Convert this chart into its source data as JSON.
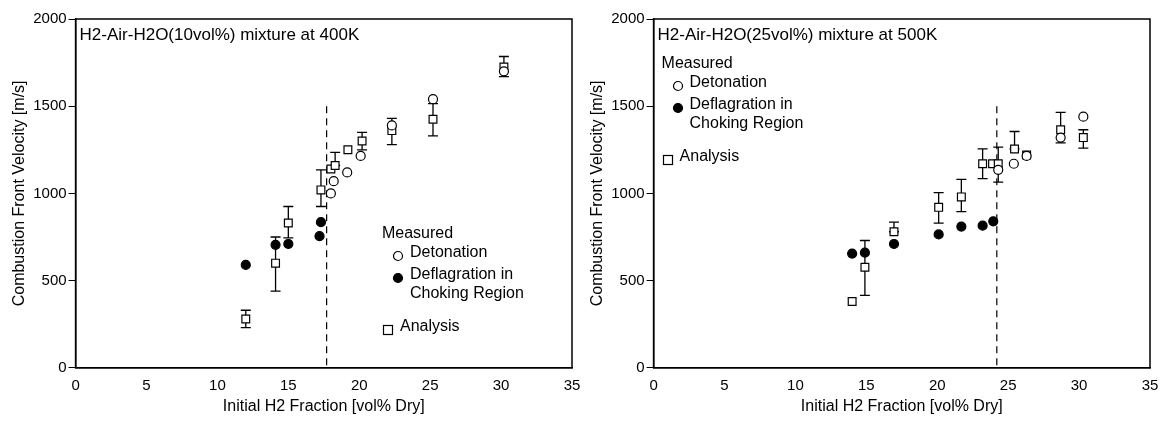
{
  "chart_data": [
    {
      "type": "scatter",
      "title": "H2-Air-H2O(10vol%) mixture at 400K",
      "xlabel": "Initial H2 Fraction [vol% Dry]",
      "ylabel": "Combustion Front Velocity [m/s]",
      "legend_title": "Measured",
      "legend": "bottom right",
      "xlim": [
        0,
        35
      ],
      "xticks": [
        0,
        5,
        10,
        15,
        20,
        25,
        30,
        35
      ],
      "ylim": [
        0,
        2000
      ],
      "yticks": [
        0,
        500,
        1000,
        1500,
        2000
      ],
      "ref_lines": [
        {
          "axis": "x",
          "value": 17.7,
          "line_style": "dashed"
        }
      ],
      "series": [
        {
          "name": "Detonation",
          "color": "#ffffff",
          "marker": "circle",
          "x": [
            18.0,
            18.2,
            19.15,
            20.1,
            22.3,
            25.2,
            30.2
          ],
          "values": [
            1000,
            1070,
            1120,
            1215,
            1390,
            1540,
            1700
          ]
        },
        {
          "name": "Deflagration in Choking Region",
          "color": "#000000",
          "marker": "circle",
          "x": [
            12.0,
            14.1,
            15.0,
            17.3,
            17.2
          ],
          "values": [
            590,
            705,
            710,
            835,
            755
          ]
        },
        {
          "name": "Analysis",
          "color": "#ffffff",
          "marker": "square",
          "x": [
            12.0,
            14.1,
            15.0,
            17.3,
            18.0,
            18.3,
            19.2,
            20.2,
            22.3,
            25.2,
            30.2
          ],
          "values": [
            280,
            600,
            830,
            1020,
            1140,
            1160,
            1250,
            1300,
            1360,
            1425,
            1725
          ],
          "errors": [
            50,
            [
              440,
              750
            ],
            [
              745,
              925
            ],
            [
              925,
              1135
            ],
            null,
            [
              1160,
              1235
            ],
            null,
            [
              1250,
              1350
            ],
            [
              1280,
              1430
            ],
            [
              1330,
              1515
            ],
            [
              1670,
              1785
            ]
          ]
        }
      ]
    },
    {
      "type": "scatter",
      "title": "H2-Air-H2O(25vol%) mixture at 500K",
      "xlabel": "Initial H2 Fraction [vol% Dry]",
      "ylabel": "Combustion Front Velocity [m/s]",
      "legend_title": "Measured",
      "legend": "top left",
      "xlim": [
        0,
        35
      ],
      "xticks": [
        0,
        5,
        10,
        15,
        20,
        25,
        30,
        35
      ],
      "ylim": [
        0,
        2000
      ],
      "yticks": [
        0,
        500,
        1000,
        1500,
        2000
      ],
      "ref_lines": [
        {
          "axis": "x",
          "value": 24.2,
          "line_style": "dashed"
        }
      ],
      "series": [
        {
          "name": "Detonation",
          "color": "#ffffff",
          "marker": "circle",
          "x": [
            24.3,
            25.4,
            26.3,
            28.7,
            30.3
          ],
          "values": [
            1135,
            1170,
            1215,
            1320,
            1440
          ]
        },
        {
          "name": "Deflagration in Choking Region",
          "color": "#000000",
          "marker": "circle",
          "x": [
            14.0,
            14.9,
            16.95,
            20.1,
            21.7,
            23.2,
            23.95
          ],
          "values": [
            655,
            660,
            710,
            765,
            810,
            815,
            840
          ]
        },
        {
          "name": "Analysis",
          "color": "#ffffff",
          "marker": "square",
          "x": [
            14.0,
            14.9,
            16.95,
            20.1,
            21.7,
            23.2,
            23.9,
            24.3,
            25.45,
            26.3,
            28.7,
            30.3
          ],
          "values": [
            380,
            577,
            780,
            920,
            980,
            1170,
            1170,
            1170,
            1255,
            1220,
            1365,
            1320
          ],
          "errors": [
            null,
            [
              415,
              730
            ],
            [
              780,
              835
            ],
            [
              830,
              1005
            ],
            [
              895,
              1080
            ],
            [
              1085,
              1255
            ],
            null,
            [
              1065,
              1265
            ],
            [
              1255,
              1355
            ],
            null,
            [
              1290,
              1465
            ],
            [
              1260,
              1365
            ]
          ]
        }
      ]
    }
  ]
}
